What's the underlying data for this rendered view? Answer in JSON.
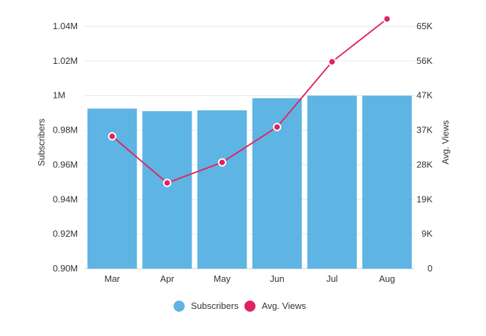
{
  "chart_data": {
    "type": "bar",
    "categories": [
      "Mar",
      "Apr",
      "May",
      "Jun",
      "Jul",
      "Aug"
    ],
    "series": [
      {
        "name": "Subscribers",
        "type": "bar",
        "axis": "left",
        "color": "#5eb4e3",
        "values": [
          992500,
          991000,
          991500,
          998500,
          1000000,
          1000000
        ]
      },
      {
        "name": "Avg. Views",
        "type": "line",
        "axis": "right",
        "color": "#e0245e",
        "values": [
          35500,
          23000,
          28500,
          38000,
          55500,
          67000
        ]
      }
    ],
    "ylabel": "Subscribers",
    "y2label": "Avg. Views",
    "ylim": [
      900000,
      1040000
    ],
    "y2lim": [
      0,
      65000
    ],
    "yticks": [
      "0.90M",
      "0.92M",
      "0.94M",
      "0.96M",
      "0.98M",
      "1M",
      "1.02M",
      "1.04M"
    ],
    "y2ticks": [
      "0",
      "9K",
      "19K",
      "28K",
      "37K",
      "47K",
      "56K",
      "65K"
    ],
    "grid": true,
    "legend": "bottom-center"
  }
}
